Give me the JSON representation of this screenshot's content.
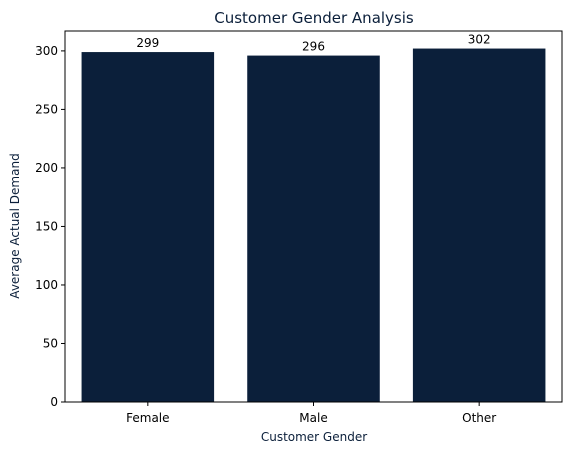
{
  "chart_data": {
    "type": "bar",
    "title": "Customer Gender Analysis",
    "xlabel": "Customer Gender",
    "ylabel": "Average Actual Demand",
    "categories": [
      "Female",
      "Male",
      "Other"
    ],
    "values": [
      299,
      296,
      302
    ],
    "data_labels": [
      "299",
      "296",
      "302"
    ],
    "ylim": [
      0,
      317
    ],
    "yticks": [
      0,
      50,
      100,
      150,
      200,
      250,
      300
    ],
    "grid": false,
    "legend": "none",
    "bar_color": "#0b1f3a",
    "title_color": "#0b1f3a",
    "label_color": "#0b1f3a"
  }
}
